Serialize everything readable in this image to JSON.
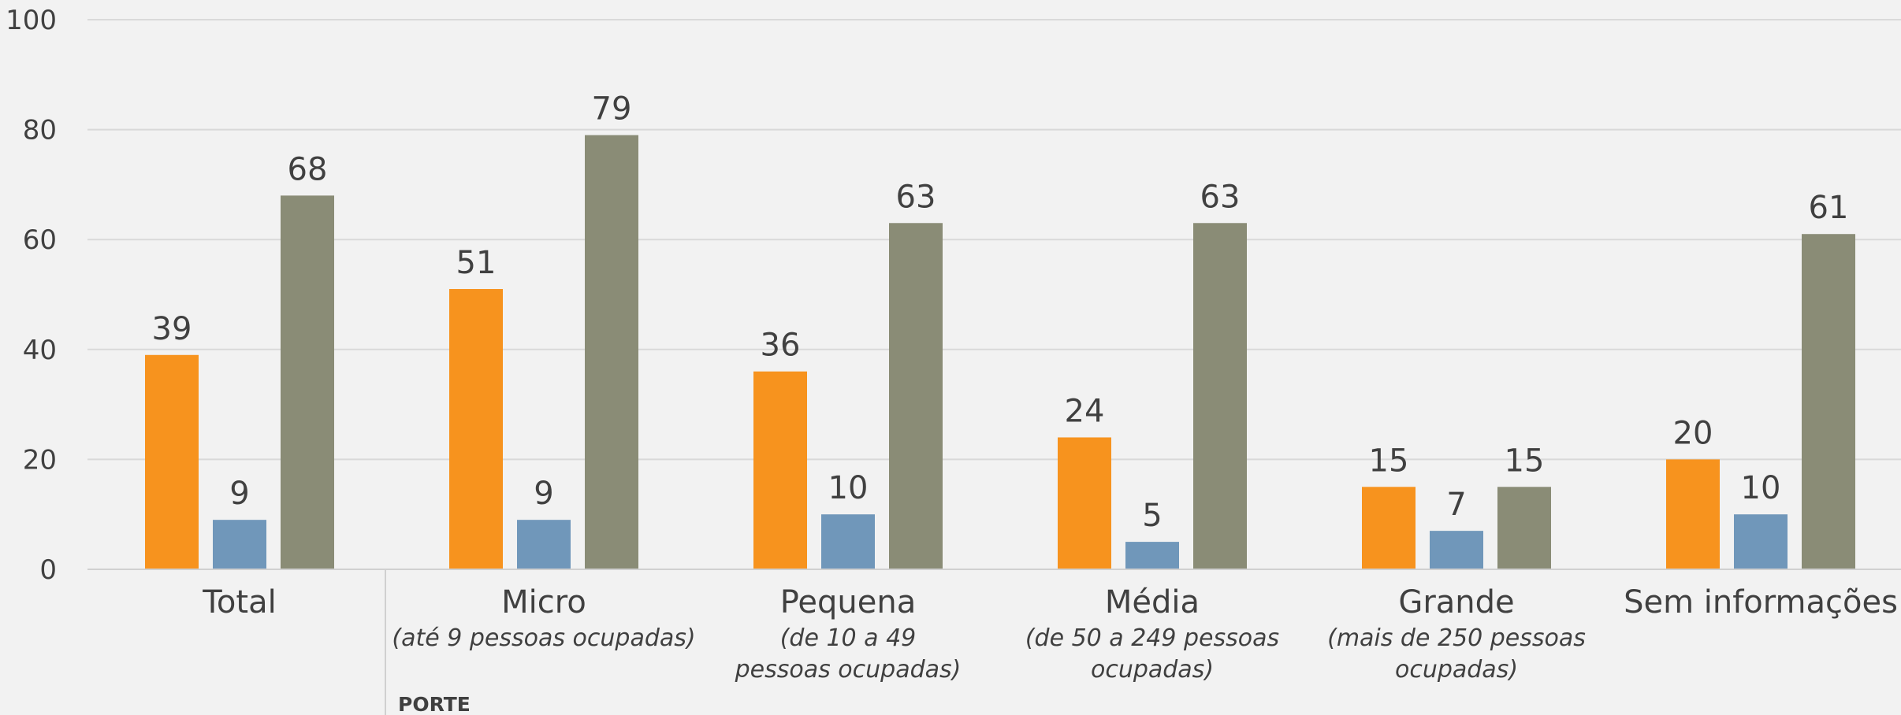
{
  "chart_data": {
    "type": "bar",
    "categories": [
      "Total",
      "Micro",
      "Pequena",
      "Média",
      "Grande",
      "Sem informações"
    ],
    "category_notes": [
      null,
      [
        "(até 9 pessoas ocupadas)"
      ],
      [
        "(de 10 a 49",
        "pessoas ocupadas)"
      ],
      [
        "(de 50 a 249 pessoas",
        "ocupadas)"
      ],
      [
        "(mais de 250 pessoas",
        "ocupadas)"
      ],
      null
    ],
    "group_label": "PORTE",
    "series": [
      {
        "color": "#f7931e",
        "values": [
          39,
          51,
          36,
          24,
          15,
          20
        ]
      },
      {
        "color": "#7097ba",
        "values": [
          9,
          9,
          10,
          5,
          7,
          10
        ]
      },
      {
        "color": "#8a8c76",
        "values": [
          68,
          79,
          63,
          63,
          15,
          61
        ]
      }
    ],
    "ylim": [
      0,
      100
    ],
    "yticks": [
      0,
      20,
      40,
      60,
      80,
      100
    ],
    "grid": true
  }
}
